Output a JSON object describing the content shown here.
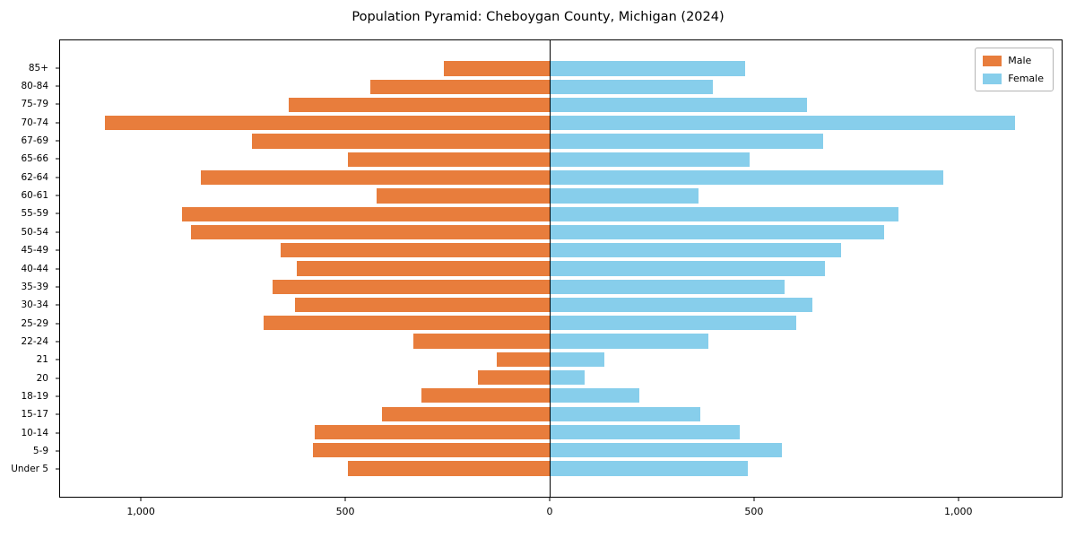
{
  "title": "Population Pyramid: Cheboygan County, Michigan (2024)",
  "legend": {
    "male": "Male",
    "female": "Female"
  },
  "colors": {
    "male": "#e87d3c",
    "female": "#87ceeb",
    "axis": "#000000"
  },
  "chart_data": {
    "type": "bar",
    "subtype": "population-pyramid",
    "title": "Population Pyramid: Cheboygan County, Michigan (2024)",
    "xlabel": "",
    "ylabel": "",
    "legend_position": "upper-right",
    "grid": false,
    "categories": [
      "85+",
      "80-84",
      "75-79",
      "70-74",
      "67-69",
      "65-66",
      "62-64",
      "60-61",
      "55-59",
      "50-54",
      "45-49",
      "40-44",
      "35-39",
      "30-34",
      "25-29",
      "22-24",
      "21",
      "20",
      "18-19",
      "15-17",
      "10-14",
      "5-9",
      "Under 5"
    ],
    "series": [
      {
        "name": "Male",
        "side": "left",
        "color": "#e87d3c",
        "values": [
          260,
          440,
          640,
          1090,
          730,
          495,
          855,
          425,
          900,
          880,
          660,
          620,
          680,
          625,
          700,
          335,
          130,
          175,
          315,
          410,
          575,
          580,
          495
        ]
      },
      {
        "name": "Female",
        "side": "right",
        "color": "#87ceeb",
        "values": [
          480,
          400,
          630,
          1140,
          670,
          490,
          965,
          365,
          855,
          820,
          715,
          675,
          575,
          645,
          605,
          390,
          135,
          85,
          220,
          370,
          465,
          570,
          485
        ]
      }
    ],
    "xlim": [
      -1200,
      1255
    ],
    "x_tick_values": [
      -1000,
      -500,
      0,
      500,
      1000
    ],
    "x_tick_labels": [
      "1,000",
      "500",
      "0",
      "500",
      "1,000"
    ]
  }
}
